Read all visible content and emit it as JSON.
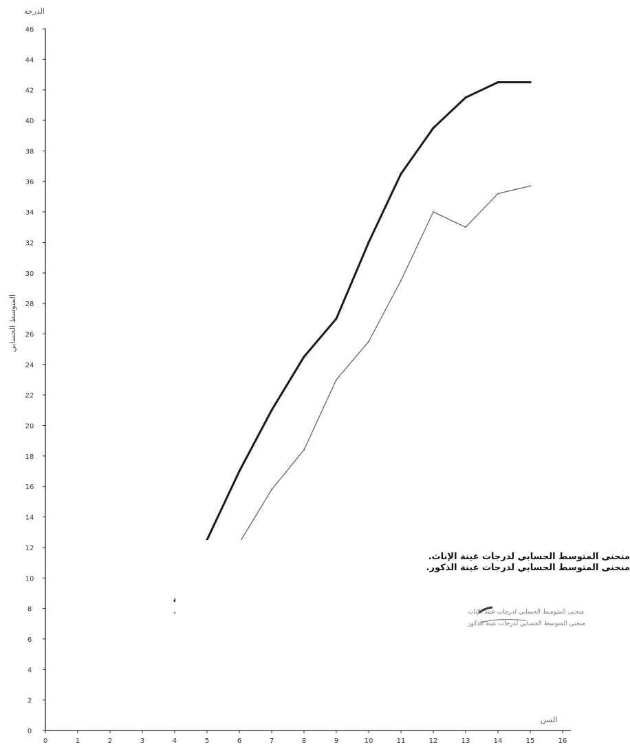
{
  "chart_data": {
    "type": "line",
    "ylabel": "المتوسط الحسابي",
    "yunit": "الدرجة",
    "xunit": "السن",
    "xlim": [
      0,
      16
    ],
    "ylim": [
      0,
      46
    ],
    "xticks": [
      "0",
      "1",
      "2",
      "3",
      "4",
      "5",
      "6",
      "7",
      "8",
      "9",
      "10",
      "11",
      "12",
      "13",
      "14",
      "15",
      "16"
    ],
    "yticks": [
      "0",
      "2",
      "4",
      "6",
      "8",
      "10",
      "12",
      "14",
      "16",
      "18",
      "20",
      "22",
      "24",
      "26",
      "28",
      "30",
      "32",
      "34",
      "36",
      "38",
      "40",
      "42",
      "44",
      "46"
    ],
    "series": [
      {
        "name": "منحنى المتوسط الحسابي لدرجات عينة الإناث.",
        "style": "thick",
        "x": [
          4,
          5,
          6,
          7,
          8,
          9,
          10,
          11,
          12,
          13,
          14,
          15
        ],
        "y": [
          8.5,
          12.5,
          17,
          21,
          24.5,
          27,
          32,
          36.5,
          39.5,
          41.5,
          42.5,
          42.5
        ]
      },
      {
        "name": "منحنى المتوسط الحسابي لدرجات عينة الذكور.",
        "style": "thin",
        "x": [
          4,
          5,
          6,
          7,
          8,
          9,
          10,
          11,
          12,
          13,
          14,
          15
        ],
        "y": [
          7.7,
          10,
          12.3,
          15.8,
          18.4,
          23,
          25.5,
          29.5,
          34,
          33,
          35.2,
          35.7
        ]
      }
    ],
    "scan_legend": [
      "منحنى المتوسط الحسابي لدرجات عينة الإناث",
      "منحنى المتوسط الحسابي لدرجات عينة الذكور"
    ],
    "colors": {
      "axis": "#222222",
      "thick_line": "#1a1a1a",
      "thin_line": "#5a5a5a"
    }
  }
}
